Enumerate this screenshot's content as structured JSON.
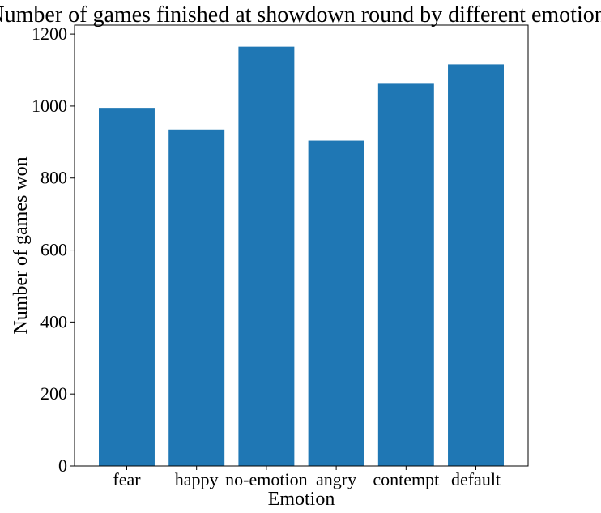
{
  "chart_data": {
    "type": "bar",
    "title": "Number of games finished at showdown round by different emotions",
    "xlabel": "Emotion",
    "ylabel": "Number of games won",
    "categories": [
      "fear",
      "happy",
      "no-emotion",
      "angry",
      "contempt",
      "default"
    ],
    "values": [
      995,
      935,
      1165,
      904,
      1062,
      1116
    ],
    "ylim": [
      0,
      1225
    ],
    "yticks": [
      0,
      200,
      400,
      600,
      800,
      1000,
      1200
    ],
    "bar_color": "#1f77b4",
    "grid": false,
    "legend": "none"
  }
}
